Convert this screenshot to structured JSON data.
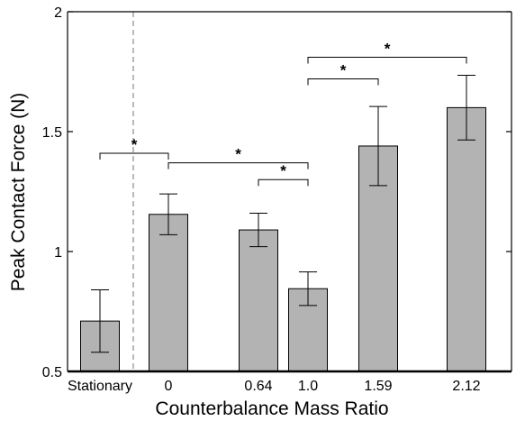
{
  "chart_data": {
    "type": "bar",
    "title": "",
    "xlabel": "Counterbalance Mass Ratio",
    "ylabel": "Peak Contact Force (N)",
    "ylim": [
      0.5,
      2
    ],
    "yticks": [
      0.5,
      1,
      1.5,
      2
    ],
    "ytick_labels": [
      "0.5",
      "1",
      "1.5",
      "2"
    ],
    "grid": false,
    "legend": "none",
    "categories": [
      "Stationary",
      "0",
      "0.64",
      "1.0",
      "1.59",
      "2.12"
    ],
    "values": [
      0.71,
      1.155,
      1.09,
      0.845,
      1.44,
      1.6
    ],
    "error": [
      0.13,
      0.085,
      0.07,
      0.07,
      0.165,
      0.135
    ],
    "bar_color": "#b3b3b3",
    "separator": "dashed vertical line between Stationary and 0",
    "significance": [
      {
        "from": "Stationary",
        "to": "0",
        "label": "*",
        "y": 1.41
      },
      {
        "from": "0",
        "to": "1.0",
        "label": "*",
        "y": 1.37
      },
      {
        "from": "0.64",
        "to": "1.0",
        "label": "*",
        "y": 1.3
      },
      {
        "from": "1.0",
        "to": "1.59",
        "label": "*",
        "y": 1.72
      },
      {
        "from": "1.0",
        "to": "2.12",
        "label": "*",
        "y": 1.81
      }
    ]
  }
}
